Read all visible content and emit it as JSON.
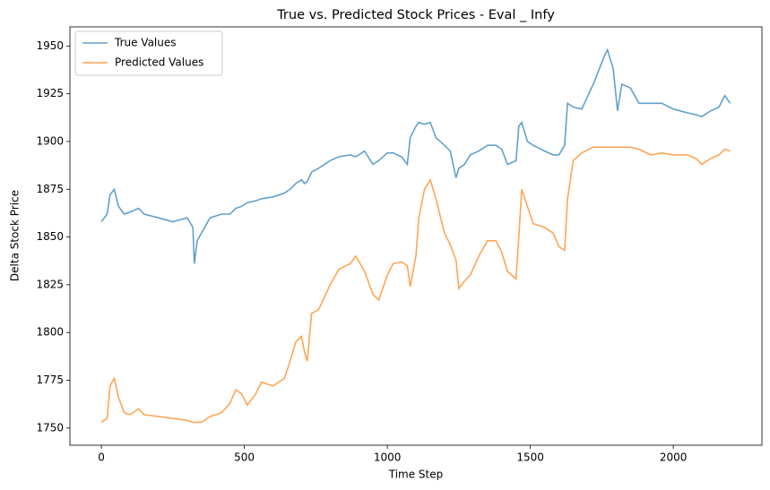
{
  "chart_data": {
    "type": "line",
    "title": "True vs. Predicted Stock Prices - Eval _ Infy",
    "x_label": "Time Step",
    "y_label": "Delta Stock Price",
    "xlim": [
      -110,
      2310
    ],
    "ylim": [
      1741,
      1960
    ],
    "xticks": [
      0,
      500,
      1000,
      1500,
      2000
    ],
    "yticks": [
      1750,
      1775,
      1800,
      1825,
      1850,
      1875,
      1900,
      1925,
      1950
    ],
    "legend": "upper left",
    "x": [
      0,
      20,
      30,
      45,
      60,
      80,
      100,
      130,
      150,
      200,
      250,
      300,
      320,
      325,
      335,
      350,
      380,
      420,
      450,
      470,
      490,
      510,
      540,
      560,
      600,
      640,
      660,
      680,
      700,
      710,
      720,
      735,
      760,
      800,
      830,
      870,
      890,
      920,
      950,
      970,
      1000,
      1020,
      1050,
      1070,
      1080,
      1100,
      1110,
      1130,
      1150,
      1170,
      1200,
      1220,
      1240,
      1250,
      1270,
      1290,
      1320,
      1350,
      1380,
      1400,
      1420,
      1450,
      1460,
      1470,
      1490,
      1510,
      1550,
      1580,
      1600,
      1620,
      1630,
      1650,
      1680,
      1720,
      1760,
      1770,
      1790,
      1805,
      1820,
      1850,
      1880,
      1920,
      1960,
      2000,
      2050,
      2080,
      2100,
      2130,
      2160,
      2180,
      2199
    ],
    "series": [
      {
        "name": "True Values",
        "color": "#1f77b4",
        "values": [
          1858,
          1862,
          1872,
          1875,
          1866,
          1862,
          1863,
          1865,
          1862,
          1860,
          1858,
          1860,
          1855,
          1836,
          1848,
          1852,
          1860,
          1862,
          1862,
          1865,
          1866,
          1868,
          1869,
          1870,
          1871,
          1873,
          1875,
          1878,
          1880,
          1878,
          1879,
          1884,
          1886,
          1890,
          1892,
          1893,
          1892,
          1895,
          1888,
          1890,
          1894,
          1894,
          1892,
          1888,
          1902,
          1908,
          1910,
          1909,
          1910,
          1902,
          1898,
          1895,
          1881,
          1886,
          1888,
          1893,
          1895,
          1898,
          1898,
          1896,
          1888,
          1890,
          1908,
          1910,
          1900,
          1898,
          1895,
          1893,
          1893,
          1898,
          1920,
          1918,
          1917,
          1930,
          1945,
          1948,
          1938,
          1916,
          1930,
          1928,
          1920,
          1920,
          1920,
          1917,
          1915,
          1914,
          1913,
          1916,
          1918,
          1924,
          1920
        ]
      },
      {
        "name": "Predicted Values",
        "color": "#ff7f0e",
        "values": [
          1753,
          1755,
          1772,
          1776,
          1766,
          1758,
          1757,
          1760,
          1757,
          1756,
          1755,
          1754,
          1753,
          1753,
          1753,
          1753,
          1756,
          1758,
          1763,
          1770,
          1768,
          1762,
          1768,
          1774,
          1772,
          1776,
          1785,
          1795,
          1798,
          1790,
          1785,
          1810,
          1812,
          1825,
          1833,
          1836,
          1840,
          1832,
          1820,
          1817,
          1830,
          1836,
          1837,
          1835,
          1824,
          1840,
          1860,
          1875,
          1880,
          1870,
          1852,
          1846,
          1838,
          1823,
          1827,
          1830,
          1840,
          1848,
          1848,
          1842,
          1832,
          1828,
          1850,
          1875,
          1866,
          1857,
          1855,
          1852,
          1845,
          1843,
          1870,
          1890,
          1894,
          1897,
          1897,
          1897,
          1897,
          1897,
          1897,
          1897,
          1896,
          1893,
          1894,
          1893,
          1893,
          1891,
          1888,
          1891,
          1893,
          1896,
          1895
        ]
      }
    ]
  }
}
